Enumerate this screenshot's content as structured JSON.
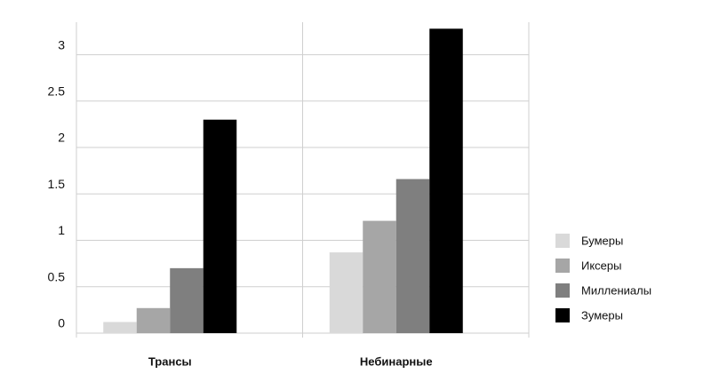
{
  "chart_data": {
    "type": "bar",
    "categories": [
      "Трансы",
      "Небинарные"
    ],
    "series": [
      {
        "name": "Бумеры",
        "color": "#d9d9d9",
        "values": [
          0.12,
          0.87
        ]
      },
      {
        "name": "Иксеры",
        "color": "#a6a6a6",
        "values": [
          0.27,
          1.21
        ]
      },
      {
        "name": "Миллениалы",
        "color": "#7f7f7f",
        "values": [
          0.7,
          1.66
        ]
      },
      {
        "name": "Зумеры",
        "color": "#000000",
        "values": [
          2.3,
          3.28
        ]
      }
    ],
    "ylim": [
      0,
      3.35
    ],
    "yticks": [
      0,
      0.5,
      1,
      1.5,
      2,
      2.5,
      3
    ],
    "grid": true,
    "legend": "right"
  }
}
